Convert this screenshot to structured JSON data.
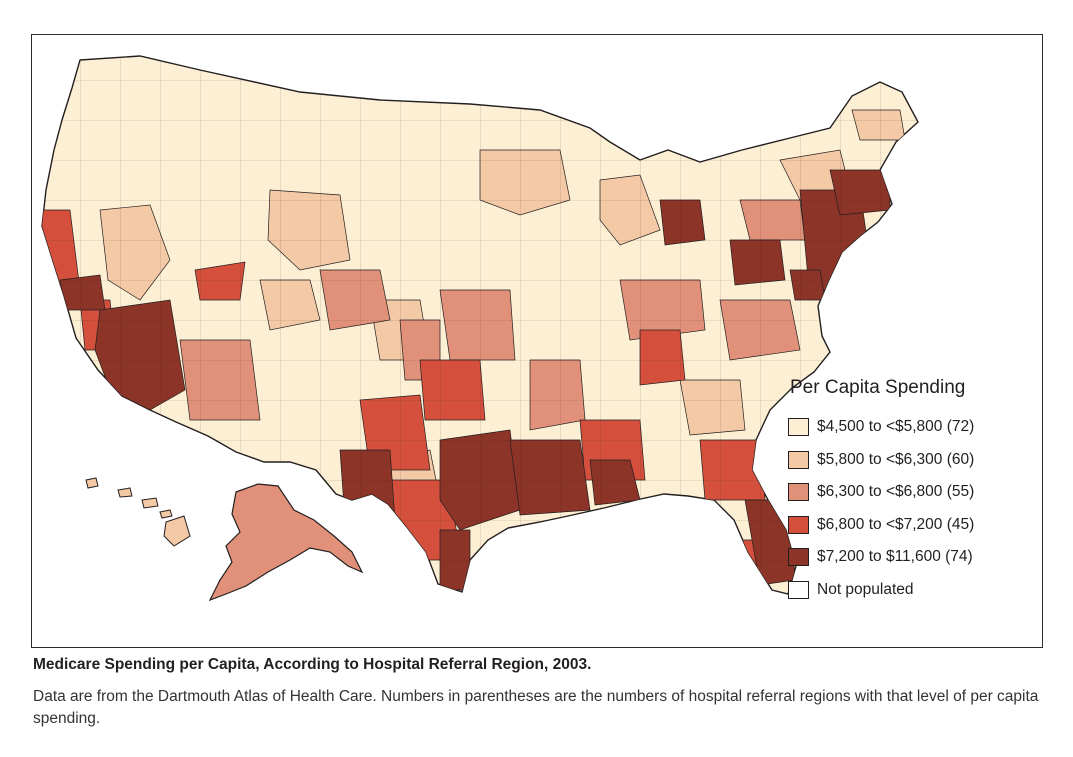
{
  "palette": {
    "level1": "#fcefd4",
    "level2": "#f4c9a6",
    "level3": "#e1917a",
    "level4": "#d5503c",
    "level5": "#8b3427",
    "none": "#ffffff",
    "border": "#231f20"
  },
  "legend": {
    "title": "Per Capita Spending",
    "items": [
      {
        "label": "$4,500 to <$5,800 (72)",
        "color": "#fcefd4"
      },
      {
        "label": "$5,800 to <$6,300 (60)",
        "color": "#f4c9a6"
      },
      {
        "label": "$6,300 to <$6,800 (55)",
        "color": "#e1917a"
      },
      {
        "label": "$6,800 to <$7,200 (45)",
        "color": "#d5503c"
      },
      {
        "label": "$7,200 to $11,600 (74)",
        "color": "#8b3427"
      },
      {
        "label": "Not populated",
        "color": "#ffffff"
      }
    ]
  },
  "caption": {
    "title": "Medicare Spending per Capita, According to Hospital Referral Region, 2003.",
    "text": "Data are from the Dartmouth Atlas of Health Care. Numbers in parentheses are the numbers of hospital referral regions with that level of per capita spending."
  }
}
